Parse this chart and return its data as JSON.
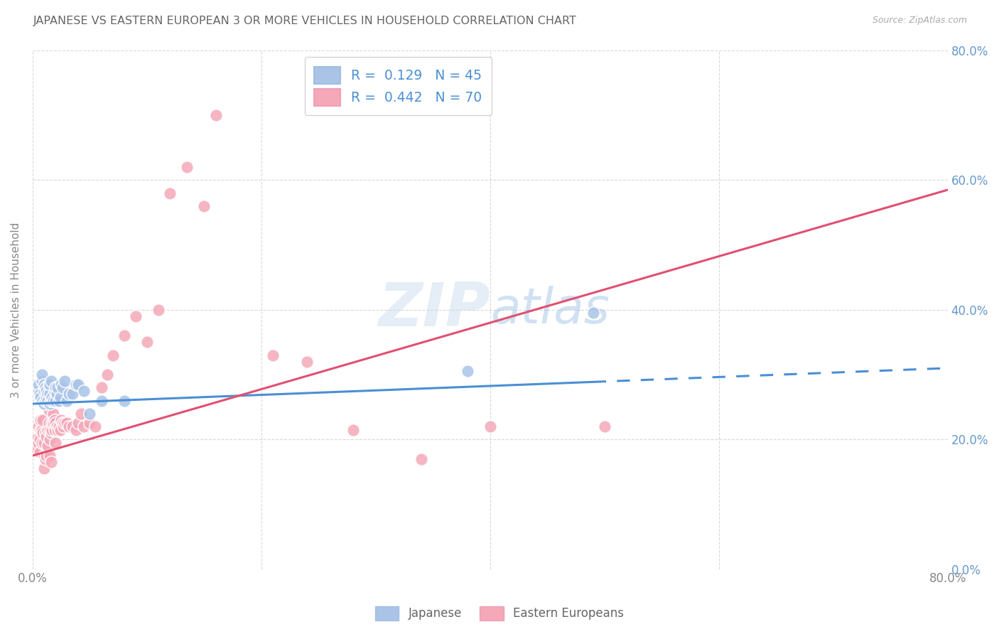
{
  "title": "JAPANESE VS EASTERN EUROPEAN 3 OR MORE VEHICLES IN HOUSEHOLD CORRELATION CHART",
  "source": "Source: ZipAtlas.com",
  "ylabel": "3 or more Vehicles in Household",
  "watermark": "ZIPatlas",
  "legend1_r": "0.129",
  "legend1_n": "45",
  "legend2_r": "0.442",
  "legend2_n": "70",
  "blue_color": "#aac4e8",
  "pink_color": "#f4a8b8",
  "blue_line_color": "#4a8fd4",
  "pink_line_color": "#e05070",
  "grid_color": "#d8d8d8",
  "title_color": "#666666",
  "right_label_color": "#6699cc",
  "xlim": [
    0,
    0.8
  ],
  "ylim": [
    0,
    0.8
  ],
  "yticks": [
    0.0,
    0.2,
    0.4,
    0.6,
    0.8
  ],
  "ytick_labels_right": [
    "0.0%",
    "20.0%",
    "40.0%",
    "60.0%",
    "80.0%"
  ],
  "xtick_labels": [
    "0.0%",
    "",
    "",
    "",
    "80.0%"
  ],
  "japanese_x": [
    0.005,
    0.005,
    0.006,
    0.007,
    0.008,
    0.008,
    0.009,
    0.01,
    0.01,
    0.01,
    0.011,
    0.011,
    0.012,
    0.012,
    0.013,
    0.013,
    0.014,
    0.015,
    0.015,
    0.015,
    0.016,
    0.016,
    0.017,
    0.018,
    0.019,
    0.02,
    0.02,
    0.021,
    0.022,
    0.023,
    0.024,
    0.025,
    0.026,
    0.028,
    0.03,
    0.032,
    0.035,
    0.038,
    0.04,
    0.045,
    0.05,
    0.06,
    0.08,
    0.38,
    0.49
  ],
  "japanese_y": [
    0.275,
    0.285,
    0.27,
    0.265,
    0.29,
    0.3,
    0.26,
    0.255,
    0.275,
    0.285,
    0.26,
    0.28,
    0.265,
    0.275,
    0.27,
    0.26,
    0.285,
    0.255,
    0.27,
    0.285,
    0.26,
    0.29,
    0.265,
    0.26,
    0.275,
    0.26,
    0.28,
    0.27,
    0.28,
    0.26,
    0.265,
    0.285,
    0.28,
    0.29,
    0.26,
    0.27,
    0.27,
    0.285,
    0.285,
    0.275,
    0.24,
    0.26,
    0.26,
    0.305,
    0.395
  ],
  "eastern_x": [
    0.003,
    0.004,
    0.005,
    0.005,
    0.006,
    0.006,
    0.007,
    0.007,
    0.008,
    0.008,
    0.009,
    0.009,
    0.01,
    0.01,
    0.01,
    0.011,
    0.011,
    0.012,
    0.012,
    0.013,
    0.013,
    0.014,
    0.014,
    0.015,
    0.015,
    0.015,
    0.016,
    0.016,
    0.017,
    0.017,
    0.018,
    0.018,
    0.019,
    0.019,
    0.02,
    0.02,
    0.021,
    0.022,
    0.023,
    0.024,
    0.025,
    0.026,
    0.027,
    0.028,
    0.03,
    0.032,
    0.035,
    0.038,
    0.04,
    0.042,
    0.045,
    0.05,
    0.055,
    0.06,
    0.065,
    0.07,
    0.08,
    0.09,
    0.1,
    0.11,
    0.12,
    0.135,
    0.15,
    0.16,
    0.21,
    0.24,
    0.28,
    0.34,
    0.4,
    0.5
  ],
  "eastern_y": [
    0.2,
    0.185,
    0.195,
    0.22,
    0.18,
    0.2,
    0.215,
    0.23,
    0.195,
    0.215,
    0.21,
    0.23,
    0.155,
    0.175,
    0.195,
    0.17,
    0.21,
    0.175,
    0.205,
    0.215,
    0.19,
    0.225,
    0.245,
    0.175,
    0.2,
    0.215,
    0.165,
    0.21,
    0.215,
    0.225,
    0.225,
    0.24,
    0.215,
    0.23,
    0.195,
    0.225,
    0.22,
    0.215,
    0.22,
    0.215,
    0.23,
    0.225,
    0.22,
    0.225,
    0.225,
    0.22,
    0.22,
    0.215,
    0.225,
    0.24,
    0.22,
    0.225,
    0.22,
    0.28,
    0.3,
    0.33,
    0.36,
    0.39,
    0.35,
    0.4,
    0.58,
    0.62,
    0.56,
    0.7,
    0.33,
    0.32,
    0.215,
    0.17,
    0.22,
    0.22
  ],
  "blue_line_start_x": 0.0,
  "blue_line_end_solid_x": 0.49,
  "blue_line_end_dash_x": 0.8,
  "blue_line_start_y": 0.255,
  "blue_line_end_y": 0.31,
  "pink_line_start_x": 0.0,
  "pink_line_end_x": 0.8,
  "pink_line_start_y": 0.175,
  "pink_line_end_y": 0.585
}
